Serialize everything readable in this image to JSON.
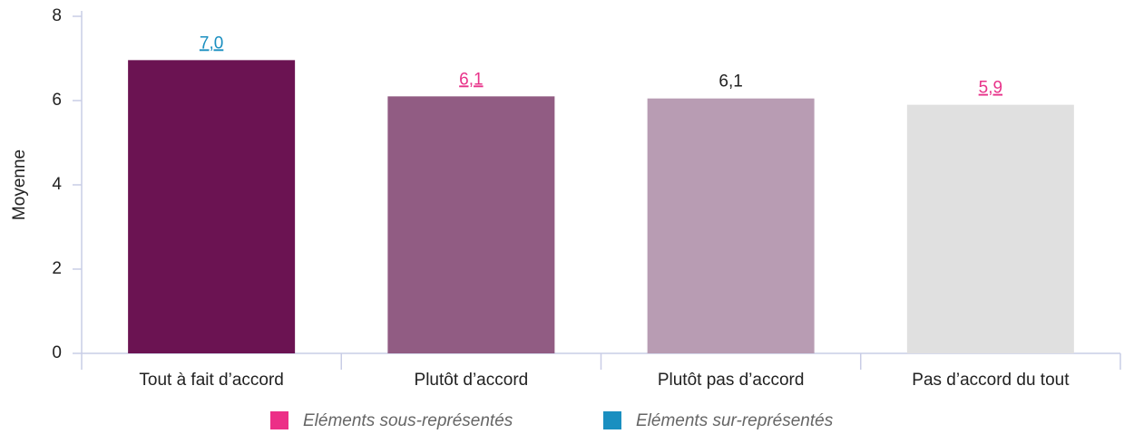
{
  "chart_data": {
    "type": "bar",
    "y_label": "Moyenne",
    "categories": [
      "Tout à fait d’accord",
      "Plutôt d’accord",
      "Plutôt pas d’accord",
      "Pas d’accord du tout"
    ],
    "values": [
      6.96,
      6.1,
      6.05,
      5.9
    ],
    "value_labels": [
      "7,0",
      "6,1",
      "6,1",
      "5,9"
    ],
    "value_label_colors": [
      "#1a8fc0",
      "#e8338a",
      "#222222",
      "#e8338a"
    ],
    "value_label_underline": [
      true,
      true,
      false,
      true
    ],
    "colors": [
      "#6b1352",
      "#915c83",
      "#b89cb3",
      "#e0e0e0"
    ],
    "ylim": [
      0,
      8
    ],
    "yticks": [
      0,
      2,
      4,
      6,
      8
    ],
    "grid": false,
    "legend": [
      {
        "name": "Eléments sous-représentés",
        "color": "#ec2f87"
      },
      {
        "name": "Eléments sur-représentés",
        "color": "#1a8fc0"
      }
    ]
  }
}
